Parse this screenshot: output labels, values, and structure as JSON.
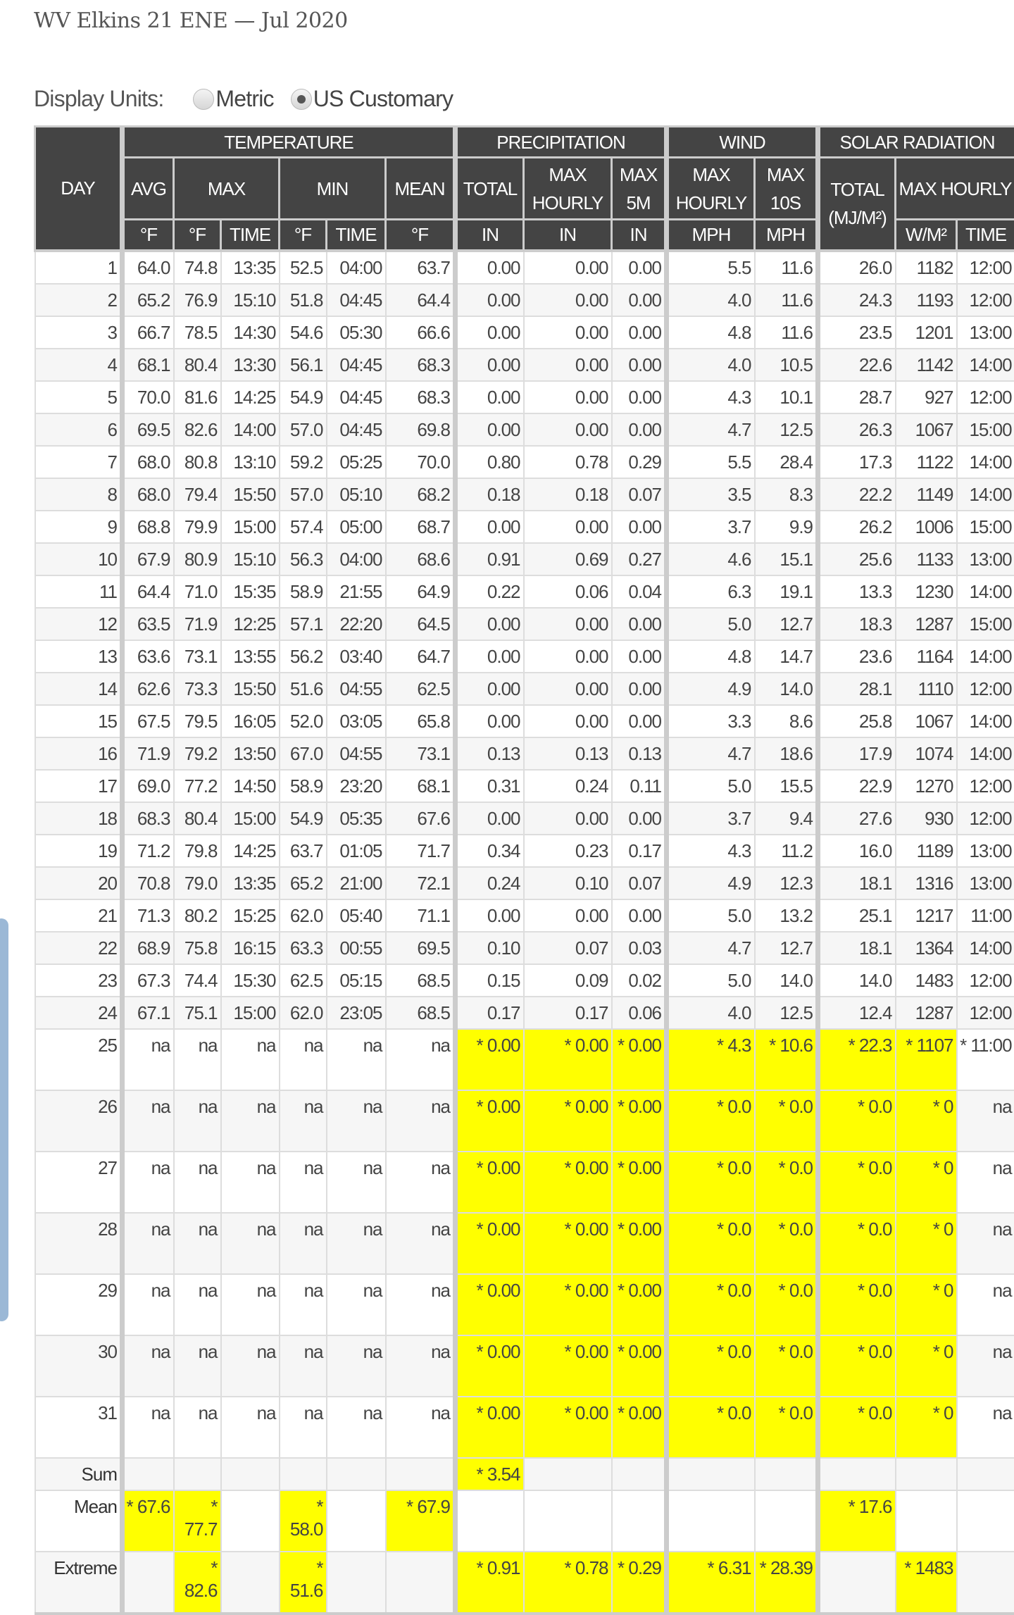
{
  "page": {
    "title": "WV Elkins 21 ENE — Jul 2020"
  },
  "units": {
    "label": "Display Units:",
    "options": [
      {
        "label": "Metric",
        "selected": false
      },
      {
        "label": "US Customary",
        "selected": true
      }
    ]
  },
  "colors": {
    "header_bg": "#444444",
    "estimated_highlight": "#ffff00",
    "side_tab": "#9bb8d6"
  },
  "table": {
    "groups": {
      "day": "DAY",
      "temperature": "TEMPERATURE",
      "precipitation": "PRECIPITATION",
      "wind": "WIND",
      "solar": "SOLAR RADIATION"
    },
    "subheaders": {
      "avg": "AVG",
      "max": "MAX",
      "min": "MIN",
      "mean": "MEAN",
      "p_total": "TOTAL",
      "p_max_hourly": "MAX HOURLY",
      "p_max_5m": "MAX 5M",
      "w_max_hourly": "MAX HOURLY",
      "w_max_10s": "MAX 10S",
      "s_total": "TOTAL (MJ/M²)",
      "s_max_hourly": "MAX HOURLY"
    },
    "units": [
      "°F",
      "°F",
      "TIME",
      "°F",
      "TIME",
      "°F",
      "IN",
      "IN",
      "IN",
      "MPH",
      "MPH",
      "W/M²",
      "TIME"
    ],
    "rows": [
      {
        "cells": [
          "1",
          "64.0",
          "74.8",
          "13:35",
          "52.5",
          "04:00",
          "63.7",
          "0.00",
          "0.00",
          "0.00",
          "5.5",
          "11.6",
          "26.0",
          "1182",
          "12:00"
        ]
      },
      {
        "cells": [
          "2",
          "65.2",
          "76.9",
          "15:10",
          "51.8",
          "04:45",
          "64.4",
          "0.00",
          "0.00",
          "0.00",
          "4.0",
          "11.6",
          "24.3",
          "1193",
          "12:00"
        ]
      },
      {
        "cells": [
          "3",
          "66.7",
          "78.5",
          "14:30",
          "54.6",
          "05:30",
          "66.6",
          "0.00",
          "0.00",
          "0.00",
          "4.8",
          "11.6",
          "23.5",
          "1201",
          "13:00"
        ]
      },
      {
        "cells": [
          "4",
          "68.1",
          "80.4",
          "13:30",
          "56.1",
          "04:45",
          "68.3",
          "0.00",
          "0.00",
          "0.00",
          "4.0",
          "10.5",
          "22.6",
          "1142",
          "14:00"
        ]
      },
      {
        "cells": [
          "5",
          "70.0",
          "81.6",
          "14:25",
          "54.9",
          "04:45",
          "68.3",
          "0.00",
          "0.00",
          "0.00",
          "4.3",
          "10.1",
          "28.7",
          "927",
          "12:00"
        ]
      },
      {
        "cells": [
          "6",
          "69.5",
          "82.6",
          "14:00",
          "57.0",
          "04:45",
          "69.8",
          "0.00",
          "0.00",
          "0.00",
          "4.7",
          "12.5",
          "26.3",
          "1067",
          "15:00"
        ]
      },
      {
        "cells": [
          "7",
          "68.0",
          "80.8",
          "13:10",
          "59.2",
          "05:25",
          "70.0",
          "0.80",
          "0.78",
          "0.29",
          "5.5",
          "28.4",
          "17.3",
          "1122",
          "14:00"
        ]
      },
      {
        "cells": [
          "8",
          "68.0",
          "79.4",
          "15:50",
          "57.0",
          "05:10",
          "68.2",
          "0.18",
          "0.18",
          "0.07",
          "3.5",
          "8.3",
          "22.2",
          "1149",
          "14:00"
        ]
      },
      {
        "cells": [
          "9",
          "68.8",
          "79.9",
          "15:00",
          "57.4",
          "05:00",
          "68.7",
          "0.00",
          "0.00",
          "0.00",
          "3.7",
          "9.9",
          "26.2",
          "1006",
          "15:00"
        ]
      },
      {
        "cells": [
          "10",
          "67.9",
          "80.9",
          "15:10",
          "56.3",
          "04:00",
          "68.6",
          "0.91",
          "0.69",
          "0.27",
          "4.6",
          "15.1",
          "25.6",
          "1133",
          "13:00"
        ]
      },
      {
        "cells": [
          "11",
          "64.4",
          "71.0",
          "15:35",
          "58.9",
          "21:55",
          "64.9",
          "0.22",
          "0.06",
          "0.04",
          "6.3",
          "19.1",
          "13.3",
          "1230",
          "14:00"
        ]
      },
      {
        "cells": [
          "12",
          "63.5",
          "71.9",
          "12:25",
          "57.1",
          "22:20",
          "64.5",
          "0.00",
          "0.00",
          "0.00",
          "5.0",
          "12.7",
          "18.3",
          "1287",
          "15:00"
        ]
      },
      {
        "cells": [
          "13",
          "63.6",
          "73.1",
          "13:55",
          "56.2",
          "03:40",
          "64.7",
          "0.00",
          "0.00",
          "0.00",
          "4.8",
          "14.7",
          "23.6",
          "1164",
          "14:00"
        ]
      },
      {
        "cells": [
          "14",
          "62.6",
          "73.3",
          "15:50",
          "51.6",
          "04:55",
          "62.5",
          "0.00",
          "0.00",
          "0.00",
          "4.9",
          "14.0",
          "28.1",
          "1110",
          "12:00"
        ]
      },
      {
        "cells": [
          "15",
          "67.5",
          "79.5",
          "16:05",
          "52.0",
          "03:05",
          "65.8",
          "0.00",
          "0.00",
          "0.00",
          "3.3",
          "8.6",
          "25.8",
          "1067",
          "14:00"
        ]
      },
      {
        "cells": [
          "16",
          "71.9",
          "79.2",
          "13:50",
          "67.0",
          "04:55",
          "73.1",
          "0.13",
          "0.13",
          "0.13",
          "4.7",
          "18.6",
          "17.9",
          "1074",
          "14:00"
        ]
      },
      {
        "cells": [
          "17",
          "69.0",
          "77.2",
          "14:50",
          "58.9",
          "23:20",
          "68.1",
          "0.31",
          "0.24",
          "0.11",
          "5.0",
          "15.5",
          "22.9",
          "1270",
          "12:00"
        ]
      },
      {
        "cells": [
          "18",
          "68.3",
          "80.4",
          "15:00",
          "54.9",
          "05:35",
          "67.6",
          "0.00",
          "0.00",
          "0.00",
          "3.7",
          "9.4",
          "27.6",
          "930",
          "12:00"
        ]
      },
      {
        "cells": [
          "19",
          "71.2",
          "79.8",
          "14:25",
          "63.7",
          "01:05",
          "71.7",
          "0.34",
          "0.23",
          "0.17",
          "4.3",
          "11.2",
          "16.0",
          "1189",
          "13:00"
        ]
      },
      {
        "cells": [
          "20",
          "70.8",
          "79.0",
          "13:35",
          "65.2",
          "21:00",
          "72.1",
          "0.24",
          "0.10",
          "0.07",
          "4.9",
          "12.3",
          "18.1",
          "1316",
          "13:00"
        ]
      },
      {
        "cells": [
          "21",
          "71.3",
          "80.2",
          "15:25",
          "62.0",
          "05:40",
          "71.1",
          "0.00",
          "0.00",
          "0.00",
          "5.0",
          "13.2",
          "25.1",
          "1217",
          "11:00"
        ]
      },
      {
        "cells": [
          "22",
          "68.9",
          "75.8",
          "16:15",
          "63.3",
          "00:55",
          "69.5",
          "0.10",
          "0.07",
          "0.03",
          "4.7",
          "12.7",
          "18.1",
          "1364",
          "14:00"
        ]
      },
      {
        "cells": [
          "23",
          "67.3",
          "74.4",
          "15:30",
          "62.5",
          "05:15",
          "68.5",
          "0.15",
          "0.09",
          "0.02",
          "5.0",
          "14.0",
          "14.0",
          "1483",
          "12:00"
        ]
      },
      {
        "cells": [
          "24",
          "67.1",
          "75.1",
          "15:00",
          "62.0",
          "23:05",
          "68.5",
          "0.17",
          "0.17",
          "0.06",
          "4.0",
          "12.5",
          "12.4",
          "1287",
          "12:00"
        ]
      },
      {
        "cells": [
          "25",
          "na",
          "na",
          "na",
          "na",
          "na",
          "na",
          "* 0.00",
          "* 0.00",
          "* 0.00",
          "* 4.3",
          "* 10.6",
          "* 22.3",
          "* 1107",
          "* 11:00"
        ],
        "highlight": [
          7,
          8,
          9,
          10,
          11,
          12,
          13
        ]
      },
      {
        "cells": [
          "26",
          "na",
          "na",
          "na",
          "na",
          "na",
          "na",
          "* 0.00",
          "* 0.00",
          "* 0.00",
          "* 0.0",
          "* 0.0",
          "* 0.0",
          "* 0",
          "na"
        ],
        "highlight": [
          7,
          8,
          9,
          10,
          11,
          12,
          13
        ]
      },
      {
        "cells": [
          "27",
          "na",
          "na",
          "na",
          "na",
          "na",
          "na",
          "* 0.00",
          "* 0.00",
          "* 0.00",
          "* 0.0",
          "* 0.0",
          "* 0.0",
          "* 0",
          "na"
        ],
        "highlight": [
          7,
          8,
          9,
          10,
          11,
          12,
          13
        ]
      },
      {
        "cells": [
          "28",
          "na",
          "na",
          "na",
          "na",
          "na",
          "na",
          "* 0.00",
          "* 0.00",
          "* 0.00",
          "* 0.0",
          "* 0.0",
          "* 0.0",
          "* 0",
          "na"
        ],
        "highlight": [
          7,
          8,
          9,
          10,
          11,
          12,
          13
        ]
      },
      {
        "cells": [
          "29",
          "na",
          "na",
          "na",
          "na",
          "na",
          "na",
          "* 0.00",
          "* 0.00",
          "* 0.00",
          "* 0.0",
          "* 0.0",
          "* 0.0",
          "* 0",
          "na"
        ],
        "highlight": [
          7,
          8,
          9,
          10,
          11,
          12,
          13
        ]
      },
      {
        "cells": [
          "30",
          "na",
          "na",
          "na",
          "na",
          "na",
          "na",
          "* 0.00",
          "* 0.00",
          "* 0.00",
          "* 0.0",
          "* 0.0",
          "* 0.0",
          "* 0",
          "na"
        ],
        "highlight": [
          7,
          8,
          9,
          10,
          11,
          12,
          13
        ]
      },
      {
        "cells": [
          "31",
          "na",
          "na",
          "na",
          "na",
          "na",
          "na",
          "* 0.00",
          "* 0.00",
          "* 0.00",
          "* 0.0",
          "* 0.0",
          "* 0.0",
          "* 0",
          "na"
        ],
        "highlight": [
          7,
          8,
          9,
          10,
          11,
          12,
          13
        ]
      },
      {
        "cells": [
          "Sum",
          "",
          "",
          "",
          "",
          "",
          "",
          "* 3.54",
          "",
          "",
          "",
          "",
          "",
          "",
          ""
        ],
        "highlight": [
          7
        ],
        "summary": true
      },
      {
        "cells": [
          "Mean",
          "* 67.6",
          "* 77.7",
          "",
          "* 58.0",
          "",
          "* 67.9",
          "",
          "",
          "",
          "",
          "",
          "* 17.6",
          "",
          ""
        ],
        "highlight": [
          1,
          2,
          4,
          6,
          12
        ],
        "summary": true
      },
      {
        "cells": [
          "Extreme",
          "",
          "* 82.6",
          "",
          "* 51.6",
          "",
          "",
          "* 0.91",
          "* 0.78",
          "* 0.29",
          "* 6.31",
          "* 28.39",
          "",
          "* 1483",
          ""
        ],
        "highlight": [
          2,
          4,
          7,
          8,
          9,
          10,
          11,
          13
        ],
        "summary": true
      }
    ]
  }
}
